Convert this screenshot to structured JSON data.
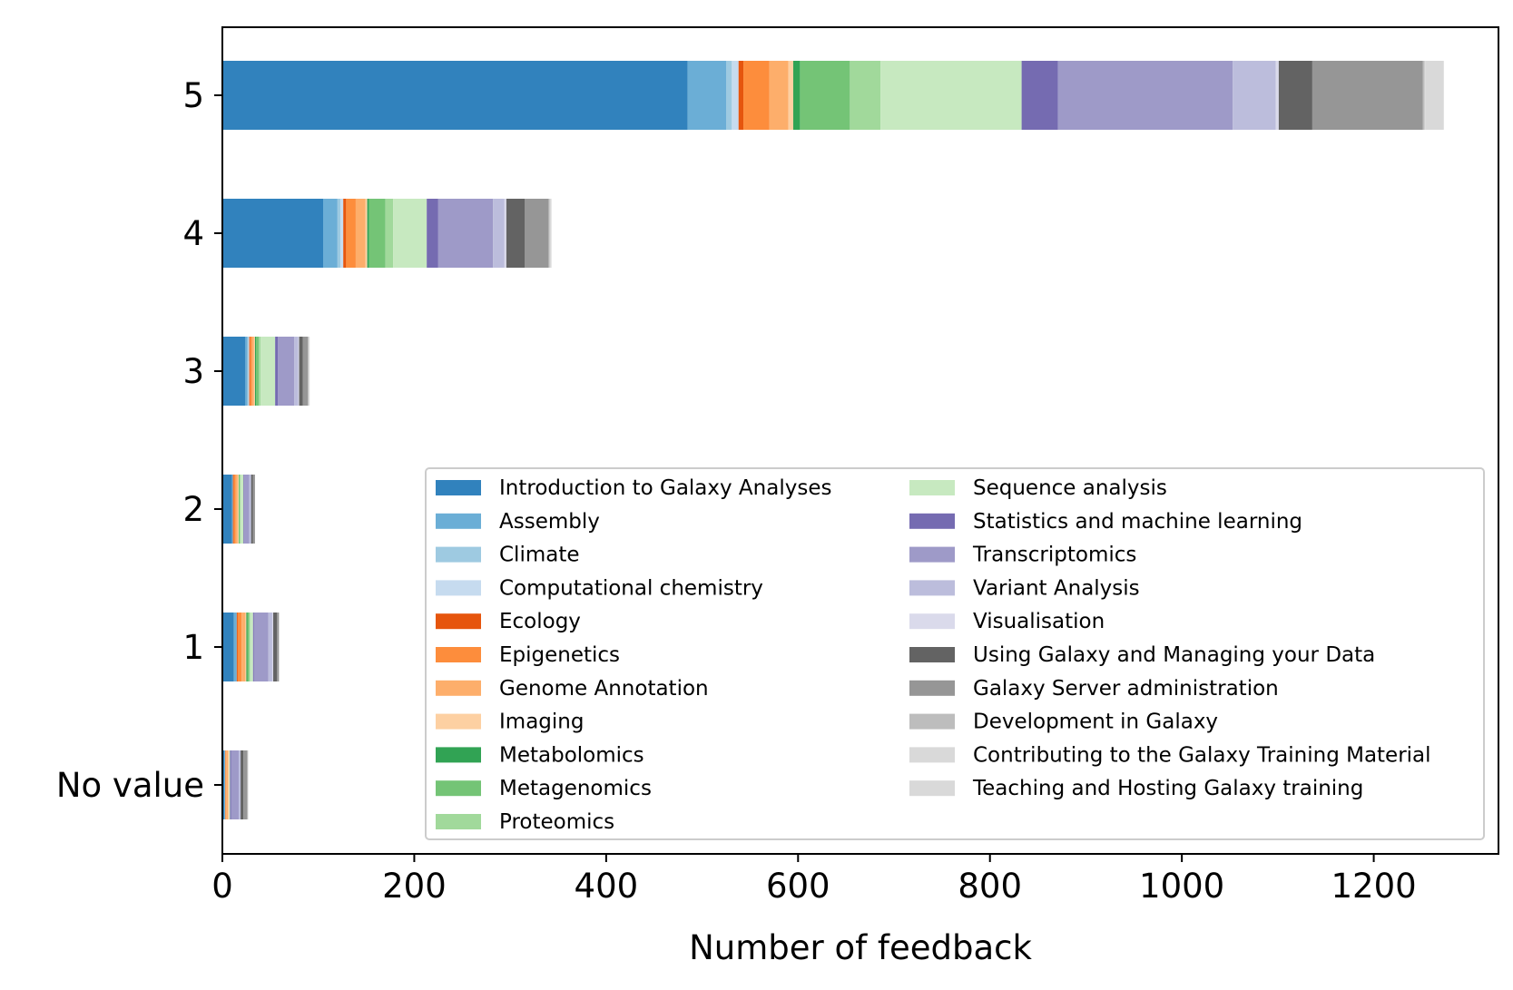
{
  "chart_data": {
    "type": "bar",
    "orientation": "horizontal",
    "stacked": true,
    "title": "",
    "xlabel": "Number of feedback",
    "ylabel": "",
    "xlim": [
      0,
      1330
    ],
    "xticks": [
      0,
      200,
      400,
      600,
      800,
      1000,
      1200
    ],
    "categories": [
      "5",
      "4",
      "3",
      "2",
      "1",
      "No value"
    ],
    "grid": false,
    "legend_position": "lower-right",
    "series": [
      {
        "name": "Introduction to Galaxy Analyses",
        "color": "#3182bd",
        "values": [
          485,
          105,
          24,
          10,
          12,
          2
        ]
      },
      {
        "name": "Assembly",
        "color": "#6baed6",
        "values": [
          40,
          15,
          2,
          1,
          3,
          1
        ]
      },
      {
        "name": "Climate",
        "color": "#9ecae1",
        "values": [
          6,
          3,
          1,
          0,
          0,
          0
        ]
      },
      {
        "name": "Computational chemistry",
        "color": "#c6dbef",
        "values": [
          7,
          3,
          1,
          0,
          0,
          0
        ]
      },
      {
        "name": "Ecology",
        "color": "#e6550d",
        "values": [
          5,
          3,
          1,
          1,
          1,
          0
        ]
      },
      {
        "name": "Epigenetics",
        "color": "#fd8d3c",
        "values": [
          27,
          10,
          2,
          2,
          4,
          1
        ]
      },
      {
        "name": "Genome Annotation",
        "color": "#fdae6b",
        "values": [
          20,
          10,
          2,
          2,
          4,
          2
        ]
      },
      {
        "name": "Imaging",
        "color": "#fdd0a2",
        "values": [
          5,
          2,
          1,
          1,
          1,
          1
        ]
      },
      {
        "name": "Metabolomics",
        "color": "#31a354",
        "values": [
          7,
          2,
          1,
          0,
          1,
          0
        ]
      },
      {
        "name": "Metagenomics",
        "color": "#74c476",
        "values": [
          52,
          17,
          3,
          1,
          2,
          0
        ]
      },
      {
        "name": "Proteomics",
        "color": "#a1d99b",
        "values": [
          32,
          8,
          2,
          1,
          1,
          0
        ]
      },
      {
        "name": "Sequence analysis",
        "color": "#c7e9c0",
        "values": [
          147,
          35,
          15,
          3,
          3,
          1
        ]
      },
      {
        "name": "Statistics and machine learning",
        "color": "#756bb1",
        "values": [
          38,
          12,
          3,
          1,
          1,
          1
        ]
      },
      {
        "name": "Transcriptomics",
        "color": "#9e9ac8",
        "values": [
          182,
          57,
          17,
          5,
          15,
          8
        ]
      },
      {
        "name": "Variant Analysis",
        "color": "#bcbddc",
        "values": [
          45,
          12,
          4,
          2,
          4,
          2
        ]
      },
      {
        "name": "Visualisation",
        "color": "#dadaeb",
        "values": [
          3,
          2,
          1,
          0,
          1,
          0
        ]
      },
      {
        "name": "Using Galaxy and Managing your Data",
        "color": "#636363",
        "values": [
          35,
          19,
          4,
          2,
          4,
          3
        ]
      },
      {
        "name": "Galaxy Server administration",
        "color": "#969696",
        "values": [
          115,
          25,
          5,
          2,
          2,
          4
        ]
      },
      {
        "name": "Development in Galaxy",
        "color": "#bdbdbd",
        "values": [
          2,
          1,
          1,
          0,
          0,
          0
        ]
      },
      {
        "name": "Contributing to the Galaxy Training Material",
        "color": "#d9d9d9",
        "values": [
          1,
          1,
          0,
          0,
          0,
          0
        ]
      },
      {
        "name": "Teaching and Hosting Galaxy training",
        "color": "#d9d9d9",
        "values": [
          19,
          1,
          1,
          0,
          0,
          1
        ]
      }
    ]
  }
}
